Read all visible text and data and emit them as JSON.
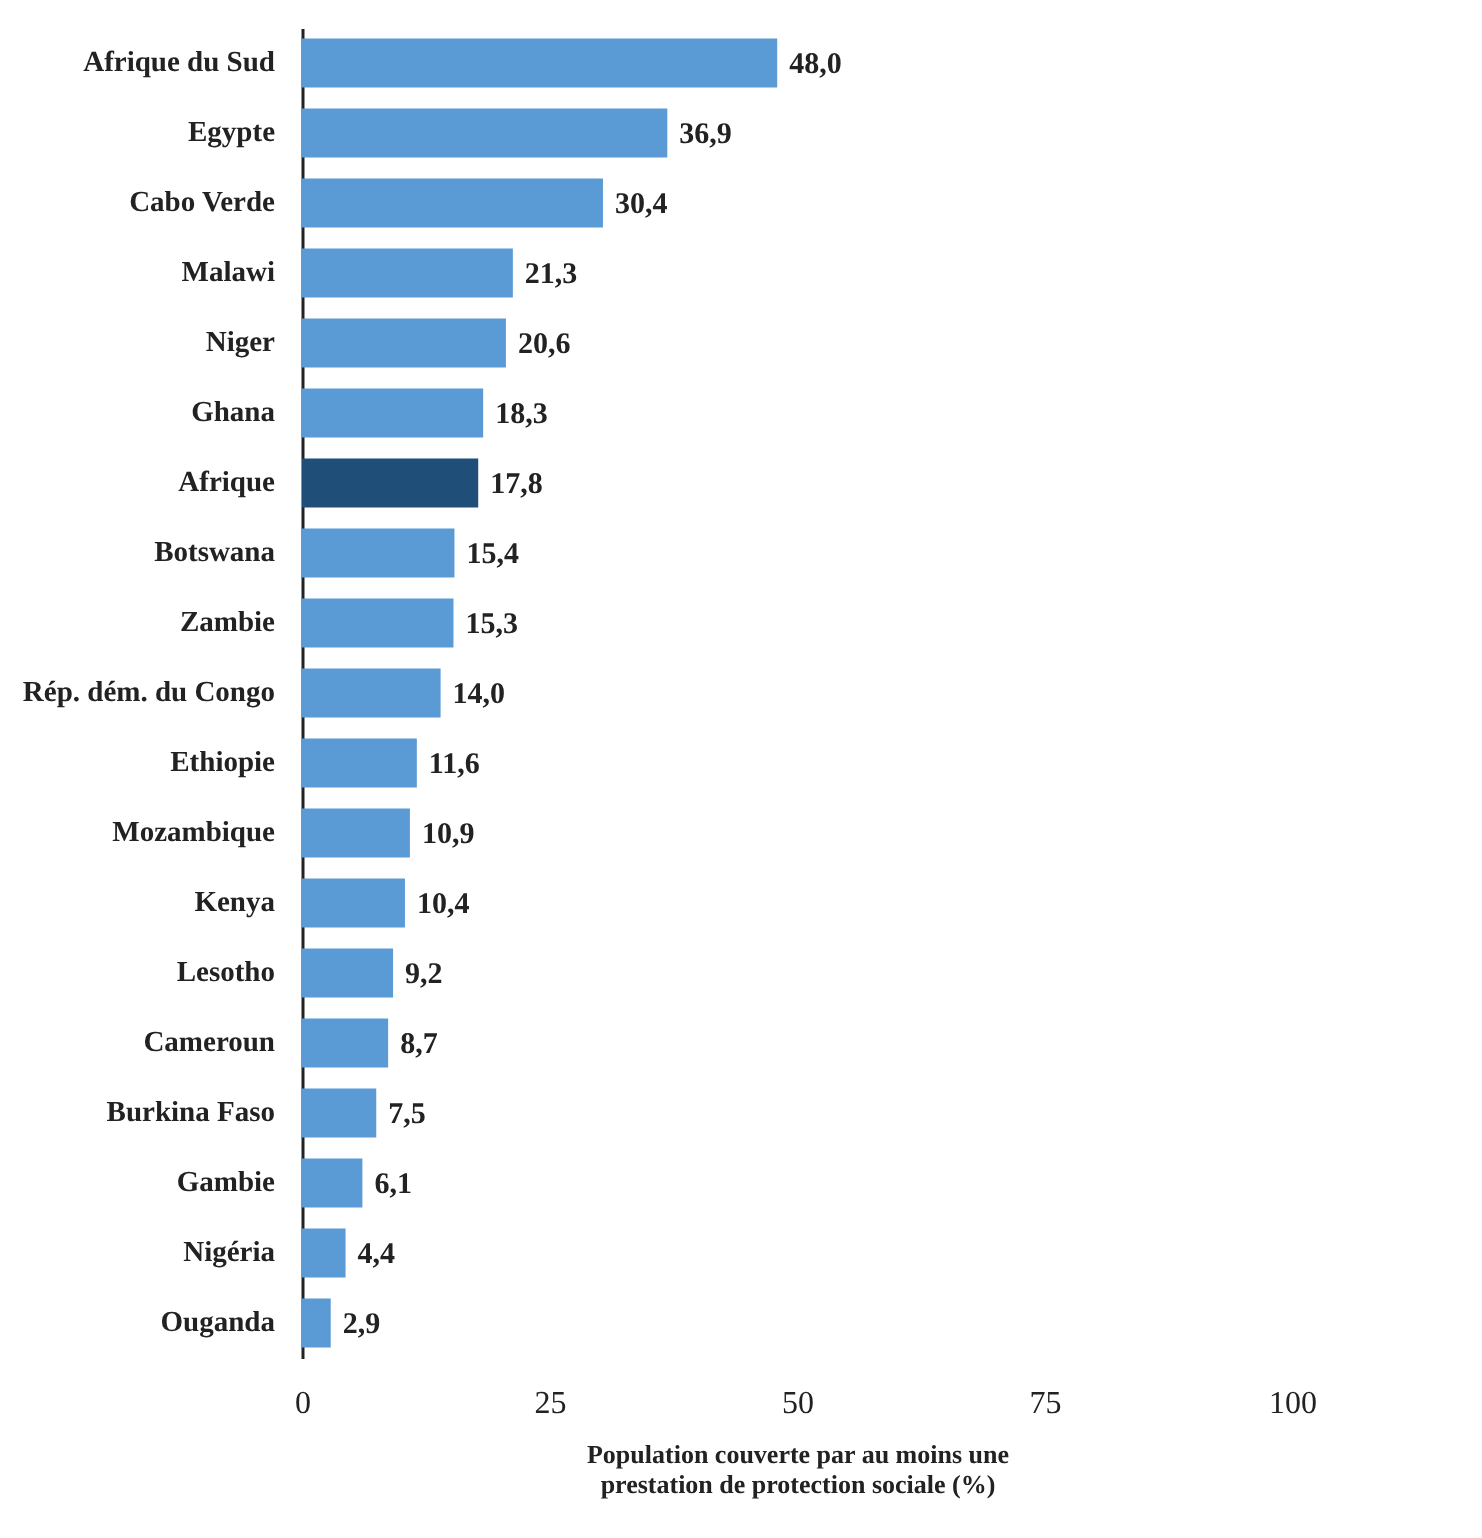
{
  "chart_data": {
    "type": "bar",
    "orientation": "horizontal",
    "xlabel": "Population couverte par au moins une prestation de protection sociale (%)",
    "categories": [
      "Afrique du Sud",
      "Egypte",
      "Cabo Verde",
      "Malawi",
      "Niger",
      "Ghana",
      "Afrique",
      "Botswana",
      "Zambie",
      "Rép. dém. du Congo",
      "Ethiopie",
      "Mozambique",
      "Kenya",
      "Lesotho",
      "Cameroun",
      "Burkina Faso",
      "Gambie",
      "Nigéria",
      "Ouganda"
    ],
    "values": [
      48.0,
      36.9,
      30.4,
      21.3,
      20.6,
      18.3,
      17.8,
      15.4,
      15.3,
      14.0,
      11.6,
      10.9,
      10.4,
      9.2,
      8.7,
      7.5,
      6.1,
      4.4,
      2.9
    ],
    "value_labels": [
      "48,0",
      "36,9",
      "30,4",
      "21,3",
      "20,6",
      "18,3",
      "17,8",
      "15,4",
      "15,3",
      "14,0",
      "11,6",
      "10,9",
      "10,4",
      "9,2",
      "8,7",
      "7,5",
      "6,1",
      "4,4",
      "2,9"
    ],
    "colors": [
      "#5b9bd5",
      "#5b9bd5",
      "#5b9bd5",
      "#5b9bd5",
      "#5b9bd5",
      "#5b9bd5",
      "#1f4e79",
      "#5b9bd5",
      "#5b9bd5",
      "#5b9bd5",
      "#5b9bd5",
      "#5b9bd5",
      "#5b9bd5",
      "#5b9bd5",
      "#5b9bd5",
      "#5b9bd5",
      "#5b9bd5",
      "#5b9bd5",
      "#5b9bd5"
    ],
    "xlim": [
      0,
      100
    ],
    "xticks": [
      0,
      25,
      50,
      75,
      100
    ],
    "grid": false
  }
}
